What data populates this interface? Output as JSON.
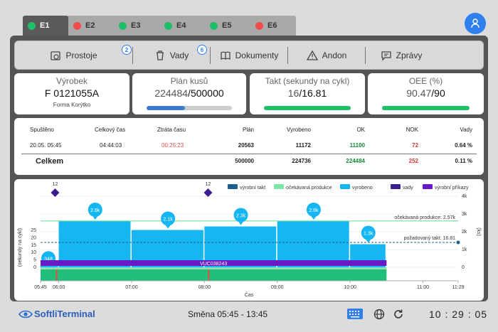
{
  "tabs": [
    {
      "label": "E1",
      "color": "#1fbf6a",
      "active": true
    },
    {
      "label": "E2",
      "color": "#f04a4a",
      "active": false
    },
    {
      "label": "E3",
      "color": "#1fbf6a",
      "active": false
    },
    {
      "label": "E4",
      "color": "#1fbf6a",
      "active": false
    },
    {
      "label": "E5",
      "color": "#1fbf6a",
      "active": false
    },
    {
      "label": "E6",
      "color": "#f04a4a",
      "active": false
    }
  ],
  "toolbar": {
    "prostoje": "Prostoje",
    "prostoje_badge": "2",
    "vady": "Vady",
    "vady_badge": "6",
    "dokumenty": "Dokumenty",
    "andon": "Andon",
    "zpravy": "Zprávy"
  },
  "cards": {
    "vyrobek": {
      "title": "Výrobek",
      "value": "F 0121055A",
      "sub": "Forma Korýtko"
    },
    "plan": {
      "title": "Plán kusů",
      "value": "224484",
      "total": "500000",
      "progress": 0.449,
      "color": "#3a7bd5"
    },
    "takt": {
      "title": "Takt (sekundy na cykl)",
      "value": "16",
      "total": "16.81",
      "progress": 1.0,
      "color": "#1fbf6a"
    },
    "oee": {
      "title": "OEE (%)",
      "value": "90.47",
      "total": "90",
      "progress": 1.0,
      "color": "#1fbf6a"
    }
  },
  "table": {
    "headers": [
      "Spuštěno",
      "Celkový čas",
      "Ztráta času",
      "Plán",
      "Vyrobeno",
      "OK",
      "NOK",
      "Vady"
    ],
    "row": [
      "20.05. 05:45",
      "04:44:03",
      "00:25:23",
      "20563",
      "11172",
      "11100",
      "72",
      "0.64 %"
    ],
    "total": [
      "Celkem",
      "",
      "",
      "500000",
      "224736",
      "224484",
      "252",
      "0.11 %"
    ]
  },
  "chart_data": {
    "type": "bar",
    "legend": [
      "výrobní takt",
      "očekávaná produkce",
      "vyrobeno",
      "vady",
      "výrobní příkazy"
    ],
    "colors": {
      "takt": "#1f5f8b",
      "expected": "#7be8a8",
      "produced": "#16b6f0",
      "defects": "#3b1e8f",
      "orders": "#6a19c8"
    },
    "xlabel": "Čas",
    "ylabel_left": "(sekundy na cykl)",
    "ylabel_right": "(ks)",
    "x_ticks": [
      "05:45",
      "06:00",
      "07:00",
      "08:00",
      "09:00",
      "10:00",
      "11:00",
      "11:29"
    ],
    "y_left_ticks": [
      "0",
      "5",
      "10",
      "15",
      "20",
      "25"
    ],
    "y_right_ticks": [
      "0",
      "1k",
      "2k",
      "3k",
      "4k"
    ],
    "bars": [
      {
        "start": "06:00",
        "end": "07:00",
        "value": "2.6k"
      },
      {
        "start": "07:00",
        "end": "08:00",
        "value": "2.1k"
      },
      {
        "start": "08:00",
        "end": "09:00",
        "value": "2.3k"
      },
      {
        "start": "09:00",
        "end": "10:00",
        "value": "2.6k"
      },
      {
        "start": "10:00",
        "end": "10:30",
        "value": "1.3k"
      }
    ],
    "first_value": "348",
    "defects": [
      {
        "time": "05:57",
        "value": "12"
      },
      {
        "time": "08:03",
        "value": "12"
      }
    ],
    "expected_label": "očekávaná produkce: 2.57k",
    "takt_label": "požadovaný takt: 16.81",
    "order_label": "VUC038243"
  },
  "footer": {
    "logo": "SoftliTerminal",
    "shift": "Směna 05:45 - 13:45",
    "clock": "10 : 29 : 05"
  }
}
